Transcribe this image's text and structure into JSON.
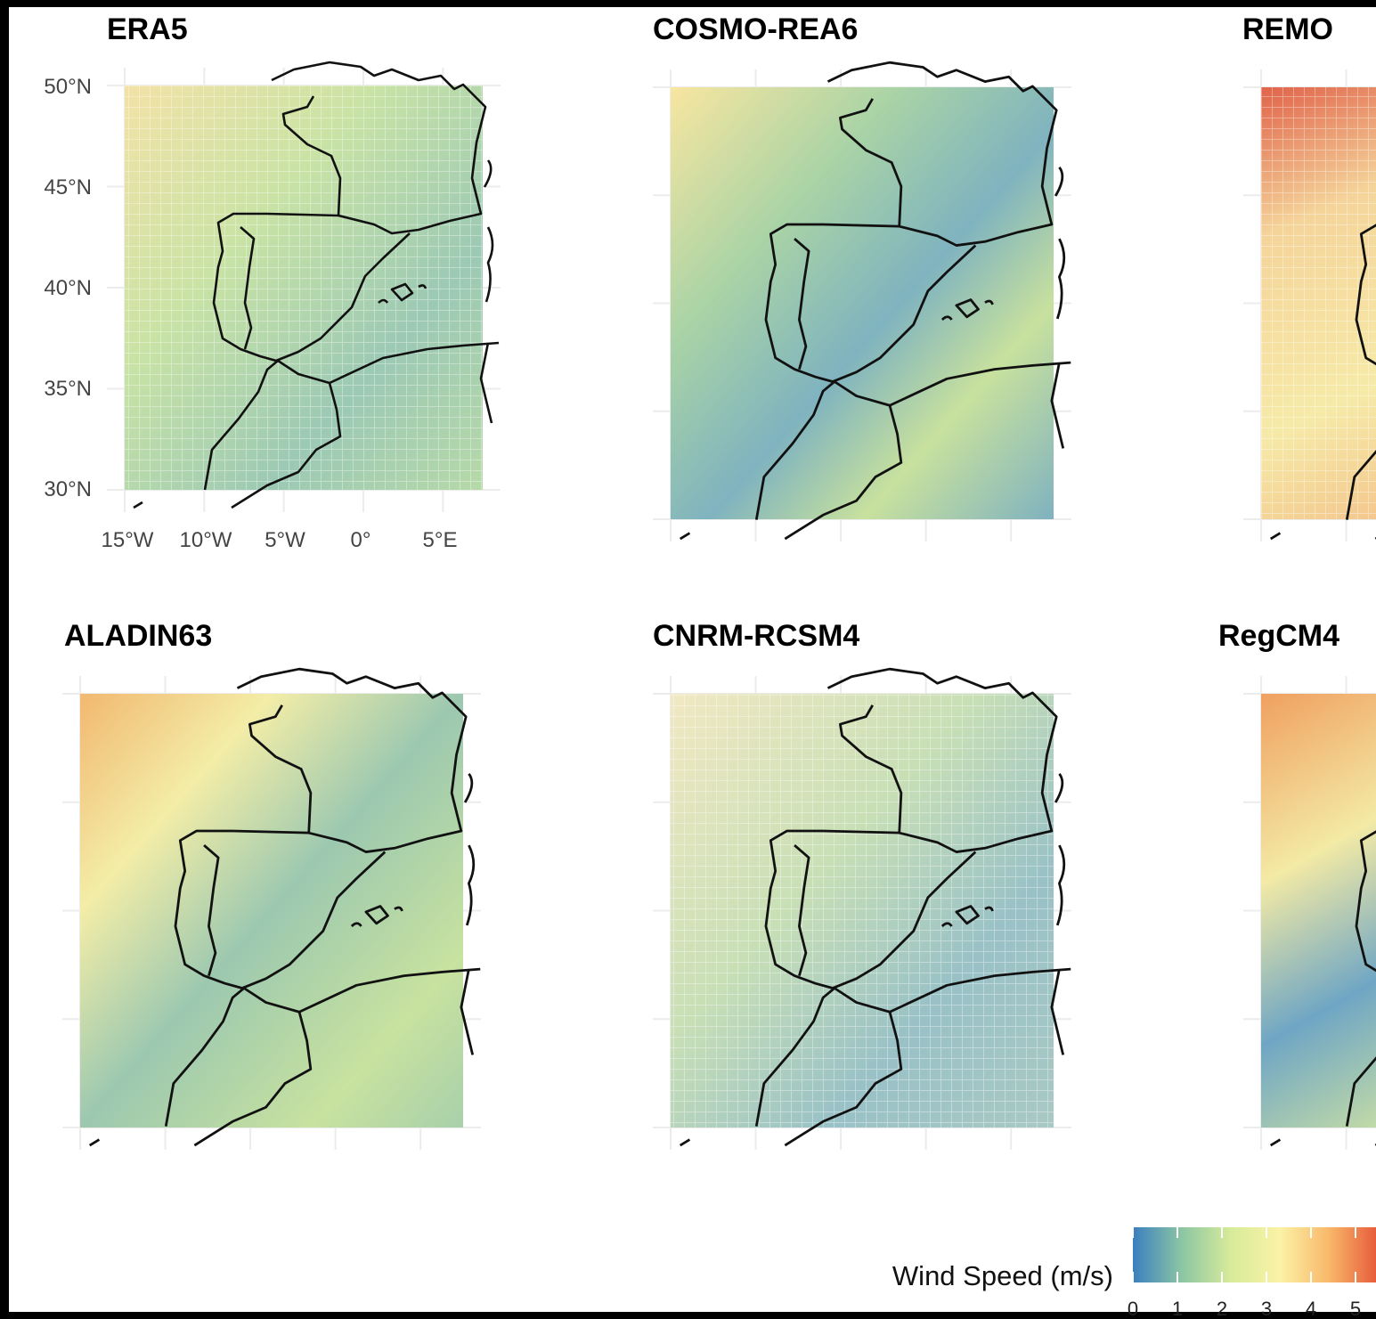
{
  "panels": [
    {
      "title": "ERA5"
    },
    {
      "title": "COSMO-REA6"
    },
    {
      "title": "REMO"
    },
    {
      "title": "ALADIN63"
    },
    {
      "title": "CNRM-RCSM4"
    },
    {
      "title": "RegCM4"
    }
  ],
  "axes": {
    "y_labels": [
      "50°N",
      "45°N",
      "40°N",
      "35°N",
      "30°N"
    ],
    "x_labels": [
      "15°W",
      "10°W",
      "5°W",
      "0°",
      "5°E"
    ]
  },
  "colorbar": {
    "label": "Wind Speed (m/s)",
    "ticks": [
      0,
      1,
      2,
      3,
      4,
      5
    ],
    "colors": [
      "#3b7fbf",
      "#8cc6a4",
      "#d7eb9a",
      "#fbf2a6",
      "#f9b86b",
      "#e65a3a"
    ]
  }
}
